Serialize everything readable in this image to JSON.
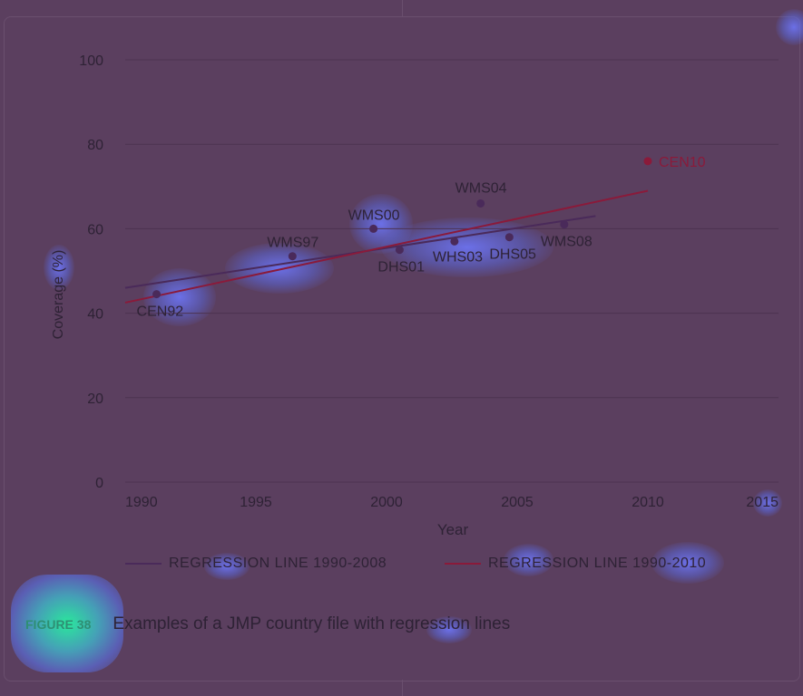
{
  "chart_data": {
    "type": "scatter",
    "xlabel": "Year",
    "ylabel": "Coverage (%)",
    "xlim": [
      1990,
      2015
    ],
    "ylim": [
      0,
      100
    ],
    "xticks": [
      1990,
      1995,
      2000,
      2005,
      2010,
      2015
    ],
    "yticks": [
      0,
      20,
      40,
      60,
      80,
      100
    ],
    "grid": "horizontal",
    "points": [
      {
        "label": "CEN92",
        "x": 1991.2,
        "y": 44.5,
        "color": "#4a2a5a"
      },
      {
        "label": "WMS97",
        "x": 1996.4,
        "y": 53.5,
        "color": "#4a2a5a"
      },
      {
        "label": "WMS00",
        "x": 1999.5,
        "y": 60,
        "color": "#4a2a5a"
      },
      {
        "label": "DHS01",
        "x": 2000.5,
        "y": 55,
        "color": "#4a2a5a"
      },
      {
        "label": "WHS03",
        "x": 2002.6,
        "y": 57,
        "color": "#4a2a5a"
      },
      {
        "label": "WMS04",
        "x": 2003.6,
        "y": 66,
        "color": "#4a2a5a"
      },
      {
        "label": "DHS05",
        "x": 2004.7,
        "y": 58,
        "color": "#4a2a5a"
      },
      {
        "label": "WMS08",
        "x": 2006.8,
        "y": 61,
        "color": "#4a2a5a"
      },
      {
        "label": "CEN10",
        "x": 2010,
        "y": 76,
        "color": "#8a1a3a"
      }
    ],
    "lines": [
      {
        "name": "REGRESSION LINE 1990-2008",
        "x": [
          1990,
          2008
        ],
        "y": [
          46,
          63
        ],
        "color": "#4a2a5a"
      },
      {
        "name": "REGRESSION LINE 1990-2010",
        "x": [
          1990,
          2010
        ],
        "y": [
          42.5,
          69
        ],
        "color": "#8a1a3a"
      }
    ]
  },
  "legend": {
    "line1": "REGRESSION LINE 1990-2008",
    "line2": "REGRESSION LINE 1990-2010"
  },
  "caption": {
    "figure_label": "FIGURE 38",
    "title": "Examples of a JMP country file with regression lines"
  },
  "colors": {
    "background": "#5b3f5f",
    "text": "#2e2235",
    "series1": "#4a2a5a",
    "series2": "#8a1a3a",
    "figure_label": "#2e8f74"
  }
}
